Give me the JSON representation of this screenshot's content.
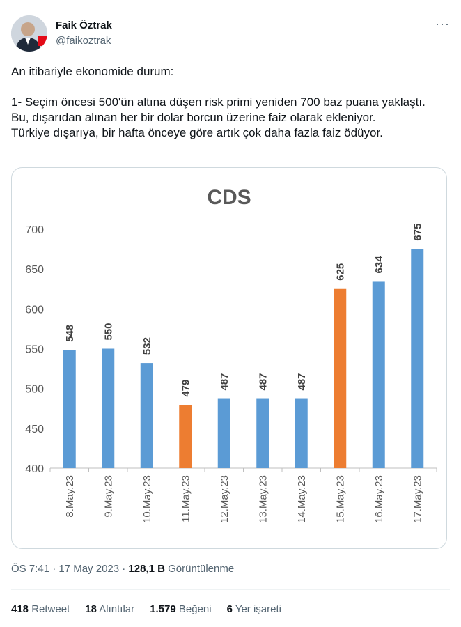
{
  "author": {
    "name": "Faik Öztrak",
    "handle": "@faikoztrak",
    "more_label": "···"
  },
  "tweet": {
    "text": "An itibariyle ekonomide durum:\n\n1- Seçim öncesi 500'ün altına düşen risk primi yeniden 700 baz puana yaklaştı.\nBu, dışarıdan alınan her bir dolar borcun üzerine faiz olarak ekleniyor.\nTürkiye dışarıya, bir hafta önceye göre artık çok daha fazla faiz ödüyor."
  },
  "chart_data": {
    "type": "bar",
    "title": "CDS",
    "categories": [
      "8.May.23",
      "9.May.23",
      "10.May.23",
      "11.May.23",
      "12.May.23",
      "13.May.23",
      "14.May.23",
      "15.May.23",
      "16.May.23",
      "17.May.23"
    ],
    "values": [
      548,
      550,
      532,
      479,
      487,
      487,
      487,
      625,
      634,
      675
    ],
    "bar_colors": [
      "#5b9bd5",
      "#5b9bd5",
      "#5b9bd5",
      "#ed7d31",
      "#5b9bd5",
      "#5b9bd5",
      "#5b9bd5",
      "#ed7d31",
      "#5b9bd5",
      "#5b9bd5"
    ],
    "ylim": [
      400,
      700
    ],
    "yticks": [
      400,
      450,
      500,
      550,
      600,
      650,
      700
    ],
    "grid": false
  },
  "meta": {
    "time": "ÖS 7:41 · 17 May 2023 · ",
    "views_count": "128,1 B",
    "views_label": " Görüntülenme"
  },
  "stats": [
    {
      "count": "418",
      "label": "Retweet"
    },
    {
      "count": "18",
      "label": "Alıntılar"
    },
    {
      "count": "1.579",
      "label": "Beğeni"
    },
    {
      "count": "6",
      "label": "Yer işareti"
    }
  ]
}
